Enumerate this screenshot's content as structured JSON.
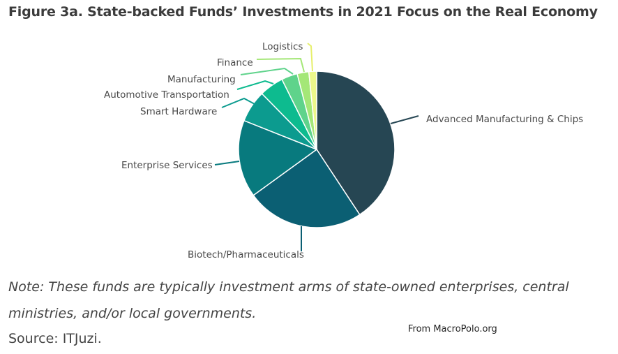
{
  "title": "Figure 3a. State-backed Funds’ Investments in 2021 Focus on the Real Economy",
  "note": "Note: These funds are typically investment arms of state-owned enterprises, central ministries, and/or local governments.",
  "source": "Source: ITJuzi.",
  "credit": "From MacroPolo.org",
  "chart_data": {
    "type": "pie",
    "title": "",
    "start_angle": "12 o'clock",
    "direction": "clockwise",
    "slices": [
      {
        "label": "Advanced Manufacturing & Chips",
        "value": 40.5,
        "color": "#264653"
      },
      {
        "label": "Biotech/Pharmaceuticals",
        "value": 24.2,
        "color": "#0b5f73"
      },
      {
        "label": "Enterprise Services",
        "value": 15.9,
        "color": "#087a7e"
      },
      {
        "label": "Smart Hardware",
        "value": 6.6,
        "color": "#0c9b8f"
      },
      {
        "label": "Automotive Transportation",
        "value": 5.0,
        "color": "#0dbb8f"
      },
      {
        "label": "Manufacturing",
        "value": 3.3,
        "color": "#5fd38b"
      },
      {
        "label": "Finance",
        "value": 2.4,
        "color": "#a4e777"
      },
      {
        "label": "Logistics",
        "value": 1.6,
        "color": "#ecf78a"
      }
    ]
  }
}
